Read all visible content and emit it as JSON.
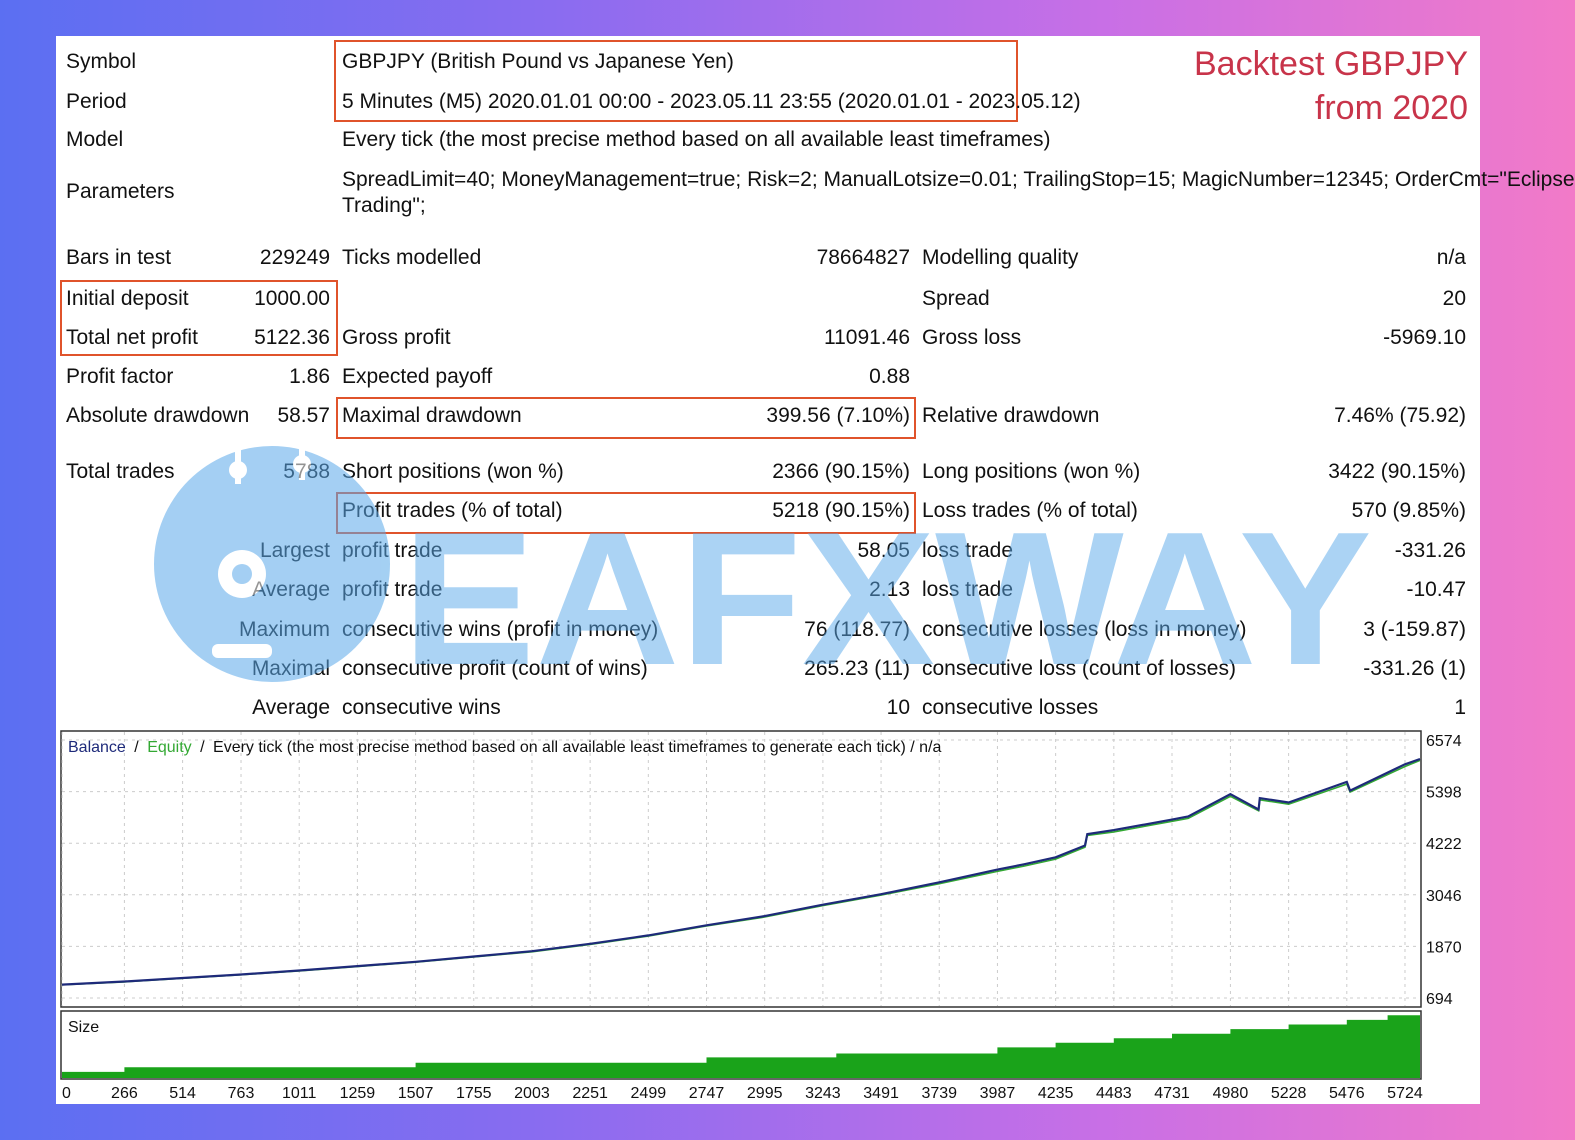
{
  "headline": {
    "line1": "Backtest GBPJPY",
    "line2": "from 2020"
  },
  "report": {
    "symbol_label": "Symbol",
    "symbol_value": "GBPJPY (British Pound vs Japanese Yen)",
    "period_label": "Period",
    "period_value": "5 Minutes (M5) 2020.01.01 00:00 - 2023.05.11 23:55 (2020.01.01 - 2023.05.12)",
    "model_label": "Model",
    "model_value": "Every tick (the most precise method based on all available least timeframes)",
    "parameters_label": "Parameters",
    "parameters_line1": "SpreadLimit=40; MoneyManagement=true; Risk=2; ManualLotsize=0.01; TrailingStop=15; MagicNumber=12345; OrderCmt=\"Eclipse",
    "parameters_line2": "Trading\";",
    "bars_label": "Bars in test",
    "bars_value": "229249",
    "ticks_label": "Ticks modelled",
    "ticks_value": "78664827",
    "quality_label": "Modelling quality",
    "quality_value": "n/a",
    "deposit_label": "Initial deposit",
    "deposit_value": "1000.00",
    "spread_label": "Spread",
    "spread_value": "20",
    "net_profit_label": "Total net profit",
    "net_profit_value": "5122.36",
    "gross_profit_label": "Gross profit",
    "gross_profit_value": "11091.46",
    "gross_loss_label": "Gross loss",
    "gross_loss_value": "-5969.10",
    "pf_label": "Profit factor",
    "pf_value": "1.86",
    "payoff_label": "Expected payoff",
    "payoff_value": "0.88",
    "abs_dd_label": "Absolute drawdown",
    "abs_dd_value": "58.57",
    "max_dd_label": "Maximal drawdown",
    "max_dd_value": "399.56 (7.10%)",
    "rel_dd_label": "Relative drawdown",
    "rel_dd_value": "7.46% (75.92)",
    "trades_label": "Total trades",
    "trades_value": "5788",
    "short_label": "Short positions (won %)",
    "short_value": "2366 (90.15%)",
    "long_label": "Long positions (won %)",
    "long_value": "3422 (90.15%)",
    "profit_trades_label": "Profit trades (% of total)",
    "profit_trades_value": "5218 (90.15%)",
    "loss_trades_label": "Loss trades (% of total)",
    "loss_trades_value": "570 (9.85%)",
    "largest_label": "Largest",
    "largest_profit_label": "profit trade",
    "largest_profit_value": "58.05",
    "largest_loss_label": "loss trade",
    "largest_loss_value": "-331.26",
    "average_label": "Average",
    "average_profit_label": "profit trade",
    "average_profit_value": "2.13",
    "average_loss_label": "loss trade",
    "average_loss_value": "-10.47",
    "maximum_label": "Maximum",
    "max_wins_label": "consecutive wins (profit in money)",
    "max_wins_value": "76 (118.77)",
    "max_losses_label": "consecutive losses (loss in money)",
    "max_losses_value": "3 (-159.87)",
    "maximal_label": "Maximal",
    "maximal_profit_label": "consecutive profit (count of wins)",
    "maximal_profit_value": "265.23 (11)",
    "maximal_loss_label": "consecutive loss (count of losses)",
    "maximal_loss_value": "-331.26 (1)",
    "avg_consec_label": "Average",
    "avg_wins_label": "consecutive wins",
    "avg_wins_value": "10",
    "avg_losses_label": "consecutive losses",
    "avg_losses_value": "1"
  },
  "watermark_text": "EAFXWAY",
  "chart_data": {
    "type": "line",
    "title_balance": "Balance",
    "title_equity": "Equity",
    "title_rest": "Every tick (the most precise method based on all available least timeframes to generate each tick) / n/a",
    "sep": "/",
    "size_label": "Size",
    "ylim": [
      694,
      6574
    ],
    "yticks": [
      "6574",
      "5398",
      "4222",
      "3046",
      "1870",
      "694"
    ],
    "xlim": [
      0,
      5788
    ],
    "xticks": [
      "0",
      "266",
      "514",
      "763",
      "1011",
      "1259",
      "1507",
      "1755",
      "2003",
      "2251",
      "2499",
      "2747",
      "2995",
      "3243",
      "3491",
      "3739",
      "3987",
      "4235",
      "4483",
      "4731",
      "4980",
      "5228",
      "5476",
      "5724"
    ],
    "colors": {
      "balance": "#1e2a7a",
      "equity": "#33a833",
      "size": "#1aa31a"
    },
    "series": [
      {
        "name": "Balance",
        "x": [
          0,
          266,
          514,
          763,
          1011,
          1259,
          1507,
          1755,
          2003,
          2251,
          2499,
          2747,
          2995,
          3243,
          3491,
          3739,
          3987,
          4100,
          4235,
          4360,
          4370,
          4483,
          4731,
          4800,
          4980,
          5100,
          5105,
          5228,
          5476,
          5490,
          5724,
          5788
        ],
        "values": [
          1000,
          1070,
          1150,
          1230,
          1320,
          1420,
          1520,
          1640,
          1760,
          1930,
          2120,
          2350,
          2560,
          2820,
          3060,
          3330,
          3620,
          3740,
          3900,
          4170,
          4430,
          4520,
          4760,
          4830,
          5340,
          4990,
          5250,
          5150,
          5620,
          5420,
          6020,
          6140
        ]
      },
      {
        "name": "Equity",
        "x": [
          0,
          266,
          514,
          763,
          1011,
          1259,
          1507,
          1755,
          2003,
          2251,
          2499,
          2747,
          2995,
          3243,
          3491,
          3739,
          3987,
          4100,
          4235,
          4360,
          4370,
          4483,
          4731,
          4800,
          4980,
          5100,
          5105,
          5228,
          5476,
          5490,
          5724,
          5788
        ],
        "values": [
          995,
          1062,
          1142,
          1222,
          1312,
          1410,
          1510,
          1628,
          1748,
          1915,
          2105,
          2335,
          2540,
          2800,
          3040,
          3300,
          3580,
          3700,
          3860,
          4130,
          4400,
          4480,
          4720,
          4790,
          5290,
          4960,
          5210,
          5110,
          5570,
          5390,
          5970,
          6110
        ]
      }
    ],
    "size_steps": {
      "x": [
        0,
        266,
        1507,
        2747,
        3243,
        3300,
        3491,
        3987,
        4235,
        4483,
        4731,
        4980,
        5228,
        5476,
        5650,
        5788
      ],
      "values": [
        0.08,
        0.14,
        0.2,
        0.27,
        0.27,
        0.32,
        0.32,
        0.4,
        0.46,
        0.52,
        0.58,
        0.64,
        0.7,
        0.76,
        0.82,
        0.82
      ]
    }
  }
}
